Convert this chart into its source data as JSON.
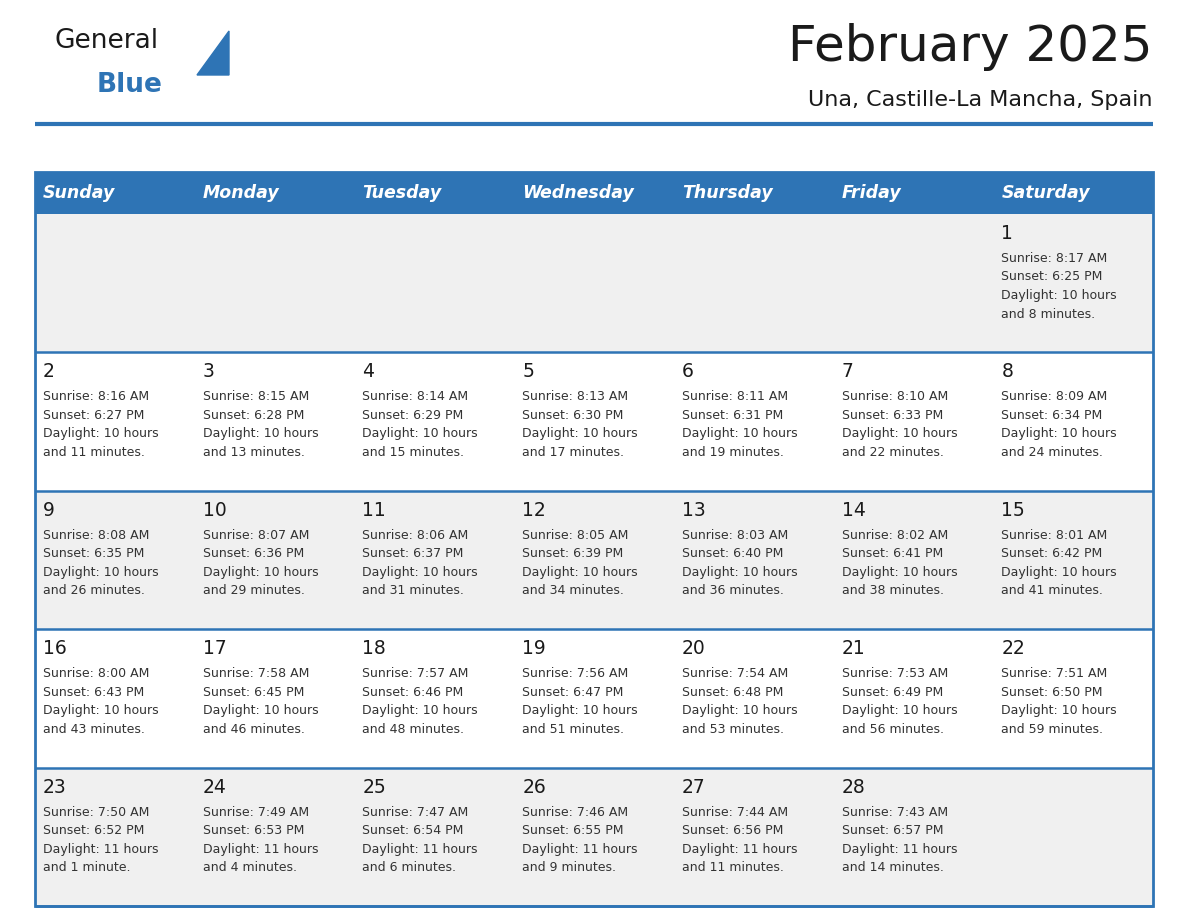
{
  "title": "February 2025",
  "subtitle": "Una, Castille-La Mancha, Spain",
  "header_color": "#2e74b5",
  "header_text_color": "#ffffff",
  "cell_bg_white": "#ffffff",
  "cell_bg_grey": "#f0f0f0",
  "border_color": "#2e74b5",
  "day_names": [
    "Sunday",
    "Monday",
    "Tuesday",
    "Wednesday",
    "Thursday",
    "Friday",
    "Saturday"
  ],
  "title_color": "#1a1a1a",
  "subtitle_color": "#1a1a1a",
  "cell_text_color": "#333333",
  "day_num_color": "#1a1a1a",
  "logo_general_color": "#1a1a1a",
  "logo_blue_color": "#2e74b5",
  "logo_triangle_color": "#2e74b5",
  "calendar_data": [
    [
      null,
      null,
      null,
      null,
      null,
      null,
      {
        "day": "1",
        "sunrise": "8:17 AM",
        "sunset": "6:25 PM",
        "daylight_line1": "Daylight: 10 hours",
        "daylight_line2": "and 8 minutes."
      }
    ],
    [
      {
        "day": "2",
        "sunrise": "8:16 AM",
        "sunset": "6:27 PM",
        "daylight_line1": "Daylight: 10 hours",
        "daylight_line2": "and 11 minutes."
      },
      {
        "day": "3",
        "sunrise": "8:15 AM",
        "sunset": "6:28 PM",
        "daylight_line1": "Daylight: 10 hours",
        "daylight_line2": "and 13 minutes."
      },
      {
        "day": "4",
        "sunrise": "8:14 AM",
        "sunset": "6:29 PM",
        "daylight_line1": "Daylight: 10 hours",
        "daylight_line2": "and 15 minutes."
      },
      {
        "day": "5",
        "sunrise": "8:13 AM",
        "sunset": "6:30 PM",
        "daylight_line1": "Daylight: 10 hours",
        "daylight_line2": "and 17 minutes."
      },
      {
        "day": "6",
        "sunrise": "8:11 AM",
        "sunset": "6:31 PM",
        "daylight_line1": "Daylight: 10 hours",
        "daylight_line2": "and 19 minutes."
      },
      {
        "day": "7",
        "sunrise": "8:10 AM",
        "sunset": "6:33 PM",
        "daylight_line1": "Daylight: 10 hours",
        "daylight_line2": "and 22 minutes."
      },
      {
        "day": "8",
        "sunrise": "8:09 AM",
        "sunset": "6:34 PM",
        "daylight_line1": "Daylight: 10 hours",
        "daylight_line2": "and 24 minutes."
      }
    ],
    [
      {
        "day": "9",
        "sunrise": "8:08 AM",
        "sunset": "6:35 PM",
        "daylight_line1": "Daylight: 10 hours",
        "daylight_line2": "and 26 minutes."
      },
      {
        "day": "10",
        "sunrise": "8:07 AM",
        "sunset": "6:36 PM",
        "daylight_line1": "Daylight: 10 hours",
        "daylight_line2": "and 29 minutes."
      },
      {
        "day": "11",
        "sunrise": "8:06 AM",
        "sunset": "6:37 PM",
        "daylight_line1": "Daylight: 10 hours",
        "daylight_line2": "and 31 minutes."
      },
      {
        "day": "12",
        "sunrise": "8:05 AM",
        "sunset": "6:39 PM",
        "daylight_line1": "Daylight: 10 hours",
        "daylight_line2": "and 34 minutes."
      },
      {
        "day": "13",
        "sunrise": "8:03 AM",
        "sunset": "6:40 PM",
        "daylight_line1": "Daylight: 10 hours",
        "daylight_line2": "and 36 minutes."
      },
      {
        "day": "14",
        "sunrise": "8:02 AM",
        "sunset": "6:41 PM",
        "daylight_line1": "Daylight: 10 hours",
        "daylight_line2": "and 38 minutes."
      },
      {
        "day": "15",
        "sunrise": "8:01 AM",
        "sunset": "6:42 PM",
        "daylight_line1": "Daylight: 10 hours",
        "daylight_line2": "and 41 minutes."
      }
    ],
    [
      {
        "day": "16",
        "sunrise": "8:00 AM",
        "sunset": "6:43 PM",
        "daylight_line1": "Daylight: 10 hours",
        "daylight_line2": "and 43 minutes."
      },
      {
        "day": "17",
        "sunrise": "7:58 AM",
        "sunset": "6:45 PM",
        "daylight_line1": "Daylight: 10 hours",
        "daylight_line2": "and 46 minutes."
      },
      {
        "day": "18",
        "sunrise": "7:57 AM",
        "sunset": "6:46 PM",
        "daylight_line1": "Daylight: 10 hours",
        "daylight_line2": "and 48 minutes."
      },
      {
        "day": "19",
        "sunrise": "7:56 AM",
        "sunset": "6:47 PM",
        "daylight_line1": "Daylight: 10 hours",
        "daylight_line2": "and 51 minutes."
      },
      {
        "day": "20",
        "sunrise": "7:54 AM",
        "sunset": "6:48 PM",
        "daylight_line1": "Daylight: 10 hours",
        "daylight_line2": "and 53 minutes."
      },
      {
        "day": "21",
        "sunrise": "7:53 AM",
        "sunset": "6:49 PM",
        "daylight_line1": "Daylight: 10 hours",
        "daylight_line2": "and 56 minutes."
      },
      {
        "day": "22",
        "sunrise": "7:51 AM",
        "sunset": "6:50 PM",
        "daylight_line1": "Daylight: 10 hours",
        "daylight_line2": "and 59 minutes."
      }
    ],
    [
      {
        "day": "23",
        "sunrise": "7:50 AM",
        "sunset": "6:52 PM",
        "daylight_line1": "Daylight: 11 hours",
        "daylight_line2": "and 1 minute."
      },
      {
        "day": "24",
        "sunrise": "7:49 AM",
        "sunset": "6:53 PM",
        "daylight_line1": "Daylight: 11 hours",
        "daylight_line2": "and 4 minutes."
      },
      {
        "day": "25",
        "sunrise": "7:47 AM",
        "sunset": "6:54 PM",
        "daylight_line1": "Daylight: 11 hours",
        "daylight_line2": "and 6 minutes."
      },
      {
        "day": "26",
        "sunrise": "7:46 AM",
        "sunset": "6:55 PM",
        "daylight_line1": "Daylight: 11 hours",
        "daylight_line2": "and 9 minutes."
      },
      {
        "day": "27",
        "sunrise": "7:44 AM",
        "sunset": "6:56 PM",
        "daylight_line1": "Daylight: 11 hours",
        "daylight_line2": "and 11 minutes."
      },
      {
        "day": "28",
        "sunrise": "7:43 AM",
        "sunset": "6:57 PM",
        "daylight_line1": "Daylight: 11 hours",
        "daylight_line2": "and 14 minutes."
      },
      null
    ]
  ]
}
